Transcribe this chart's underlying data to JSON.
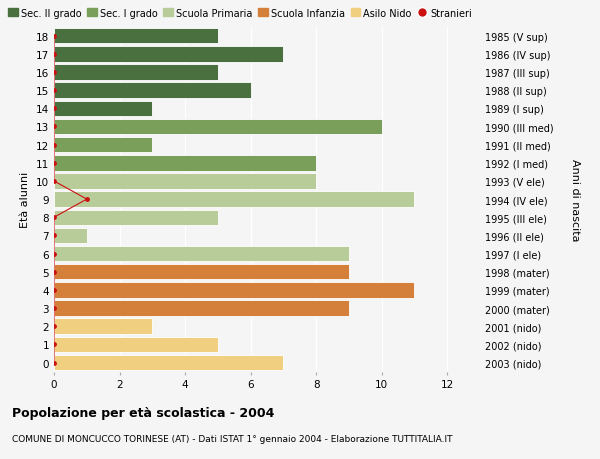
{
  "ages": [
    18,
    17,
    16,
    15,
    14,
    13,
    12,
    11,
    10,
    9,
    8,
    7,
    6,
    5,
    4,
    3,
    2,
    1,
    0
  ],
  "years": [
    "1985 (V sup)",
    "1986 (IV sup)",
    "1987 (III sup)",
    "1988 (II sup)",
    "1989 (I sup)",
    "1990 (III med)",
    "1991 (II med)",
    "1992 (I med)",
    "1993 (V ele)",
    "1994 (IV ele)",
    "1995 (III ele)",
    "1996 (II ele)",
    "1997 (I ele)",
    "1998 (mater)",
    "1999 (mater)",
    "2000 (mater)",
    "2001 (nido)",
    "2002 (nido)",
    "2003 (nido)"
  ],
  "values": [
    5,
    7,
    5,
    6,
    3,
    10,
    3,
    8,
    8,
    11,
    5,
    1,
    9,
    9,
    11,
    9,
    3,
    5,
    7
  ],
  "colors": [
    "#4a7040",
    "#4a7040",
    "#4a7040",
    "#4a7040",
    "#4a7040",
    "#7a9f5a",
    "#7a9f5a",
    "#7a9f5a",
    "#b8cc99",
    "#b8cc99",
    "#b8cc99",
    "#b8cc99",
    "#b8cc99",
    "#d4803a",
    "#d4803a",
    "#d4803a",
    "#f0d080",
    "#f0d080",
    "#f0d080"
  ],
  "stranieri_line_ages": [
    18,
    17,
    16,
    15,
    14,
    13,
    12,
    11,
    10,
    9,
    8,
    7,
    6,
    5,
    4,
    3,
    2,
    1,
    0
  ],
  "stranieri_line_values": [
    0,
    0,
    0,
    0,
    0,
    0,
    0,
    0,
    0,
    1,
    0,
    0,
    0,
    0,
    0,
    0,
    0,
    0,
    0
  ],
  "legend_labels": [
    "Sec. II grado",
    "Sec. I grado",
    "Scuola Primaria",
    "Scuola Infanzia",
    "Asilo Nido",
    "Stranieri"
  ],
  "legend_colors": [
    "#4a7040",
    "#7a9f5a",
    "#b8cc99",
    "#d4803a",
    "#f0d080",
    "#cc1111"
  ],
  "ylabel_left": "Età alunni",
  "ylabel_right": "Anni di nascita",
  "title": "Popolazione per età scolastica - 2004",
  "subtitle": "COMUNE DI MONCUCCO TORINESE (AT) - Dati ISTAT 1° gennaio 2004 - Elaborazione TUTTITALIA.IT",
  "xlim": [
    0,
    13
  ],
  "xticks": [
    0,
    2,
    4,
    6,
    8,
    10,
    12
  ],
  "ylim": [
    -0.5,
    18.5
  ],
  "bg_color": "#f5f5f5",
  "bar_height": 0.85,
  "stranieri_color": "#cc1111",
  "grid_color": "#ffffff",
  "bar_edge_color": "#ffffff"
}
